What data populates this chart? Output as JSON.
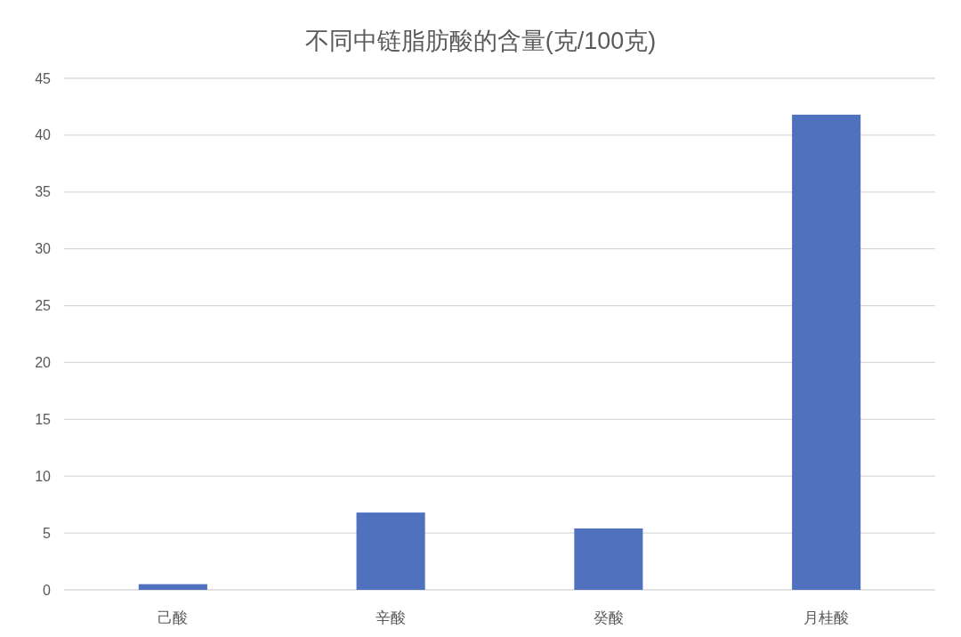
{
  "chart_data": {
    "type": "bar",
    "title": "不同中链脂肪酸的含量(克/100克)",
    "categories": [
      "己酸",
      "辛酸",
      "癸酸",
      "月桂酸"
    ],
    "values": [
      0.5,
      6.8,
      5.4,
      41.8
    ],
    "color": "#4f71be",
    "ylim": [
      0,
      45
    ],
    "yticks": [
      0,
      5,
      10,
      15,
      20,
      25,
      30,
      35,
      40,
      45
    ],
    "grid": "y"
  }
}
